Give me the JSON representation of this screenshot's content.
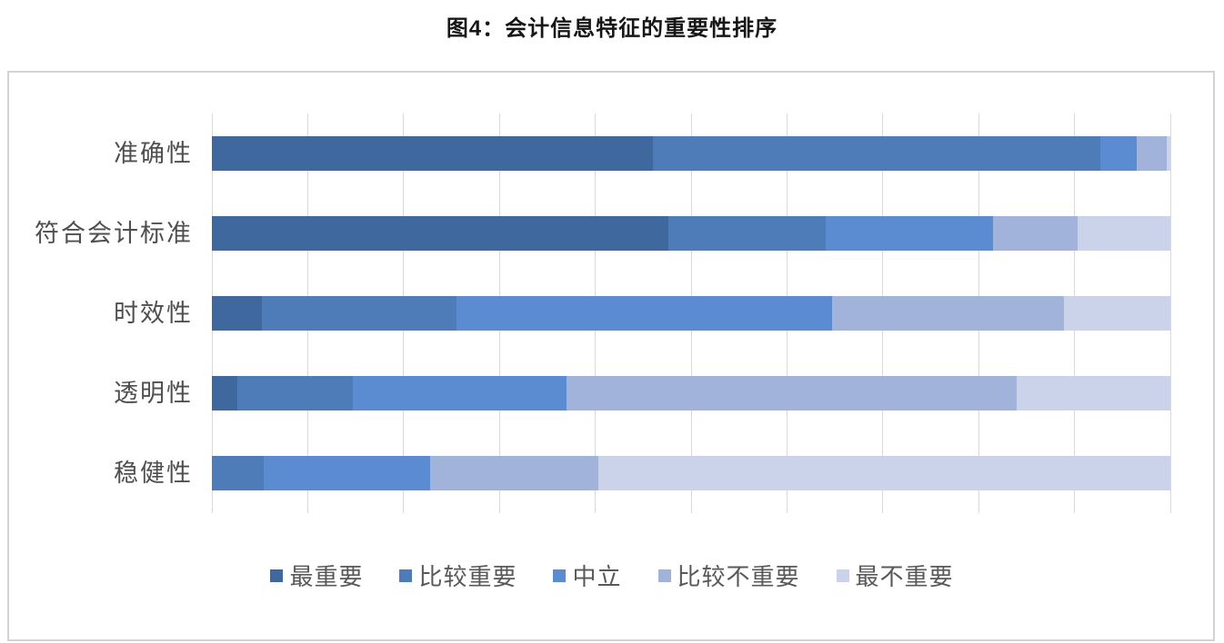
{
  "page": {
    "title": "图4：会计信息特征的重要性排序"
  },
  "chart_data": {
    "type": "bar",
    "orientation": "horizontal",
    "stacked": true,
    "unit": "percent",
    "title": "图4：会计信息特征的重要性排序",
    "categories": [
      "准确性",
      "符合会计标准",
      "时效性",
      "透明性",
      "稳健性"
    ],
    "series": [
      {
        "name": "最重要",
        "color": "#3E689E",
        "values": [
          46.0,
          47.6,
          5.2,
          2.7,
          0.0
        ]
      },
      {
        "name": "比较重要",
        "color": "#4E7CB9",
        "values": [
          46.7,
          16.4,
          20.3,
          12.0,
          5.4
        ]
      },
      {
        "name": "中立",
        "color": "#5B8BD0",
        "values": [
          3.8,
          17.5,
          39.2,
          22.3,
          17.4
        ]
      },
      {
        "name": "比较不重要",
        "color": "#A1B3DB",
        "values": [
          3.1,
          8.8,
          24.2,
          47.0,
          17.5
        ]
      },
      {
        "name": "最不重要",
        "color": "#CBD3EB",
        "values": [
          0.4,
          9.7,
          11.1,
          16.0,
          59.7
        ]
      }
    ],
    "xlim": [
      0,
      100
    ],
    "gridline_step": 10,
    "grid": true,
    "gridline_color": "#d9d9d9",
    "legend_position": "bottom"
  }
}
